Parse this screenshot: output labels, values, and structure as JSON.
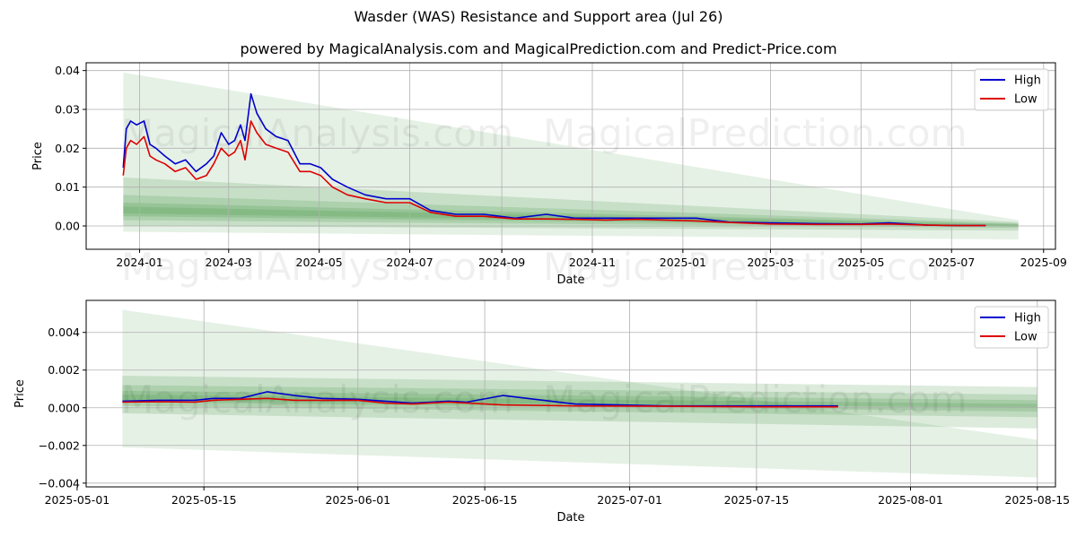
{
  "title": "Wasder (WAS) Resistance and Support area (Jul 26)",
  "subtitle": "powered by MagicalAnalysis.com and MagicalPrediction.com and Predict-Price.com",
  "watermark": [
    "MagicalAnalysis.com",
    "MagicalPrediction.com"
  ],
  "colors": {
    "high": "#0000cc",
    "low": "#dd0000",
    "band": "#2e8b2e",
    "grid": "#b0b0b0"
  },
  "chart_data": [
    {
      "type": "line",
      "xlabel": "Date",
      "ylabel": "Price",
      "xlim": [
        "2023-11-26",
        "2025-09-09"
      ],
      "ylim": [
        -0.006,
        0.042
      ],
      "xticks": [
        "2024-01",
        "2024-03",
        "2024-05",
        "2024-07",
        "2024-09",
        "2024-11",
        "2025-01",
        "2025-03",
        "2025-05",
        "2025-07",
        "2025-09"
      ],
      "yticks": [
        "0.00",
        "0.01",
        "0.02",
        "0.03",
        "0.04"
      ],
      "grid": true,
      "legend": "top-right",
      "series": [
        {
          "name": "High",
          "x": [
            "2023-12-21",
            "2023-12-23",
            "2023-12-26",
            "2023-12-30",
            "2024-01-04",
            "2024-01-08",
            "2024-01-12",
            "2024-01-18",
            "2024-01-25",
            "2024-02-01",
            "2024-02-08",
            "2024-02-15",
            "2024-02-20",
            "2024-02-25",
            "2024-03-01",
            "2024-03-05",
            "2024-03-09",
            "2024-03-12",
            "2024-03-16",
            "2024-03-20",
            "2024-03-26",
            "2024-04-02",
            "2024-04-10",
            "2024-04-18",
            "2024-04-25",
            "2024-05-02",
            "2024-05-10",
            "2024-05-20",
            "2024-06-01",
            "2024-06-15",
            "2024-07-01",
            "2024-07-15",
            "2024-08-01",
            "2024-08-20",
            "2024-09-10",
            "2024-10-01",
            "2024-10-20",
            "2024-11-10",
            "2024-12-01",
            "2024-12-20",
            "2025-01-10",
            "2025-02-01",
            "2025-03-01",
            "2025-04-01",
            "2025-05-01",
            "2025-05-20",
            "2025-06-15",
            "2025-07-05",
            "2025-07-24"
          ],
          "values": [
            0.015,
            0.025,
            0.027,
            0.026,
            0.027,
            0.021,
            0.02,
            0.018,
            0.016,
            0.017,
            0.014,
            0.016,
            0.018,
            0.024,
            0.021,
            0.022,
            0.026,
            0.022,
            0.034,
            0.029,
            0.025,
            0.023,
            0.022,
            0.016,
            0.016,
            0.015,
            0.012,
            0.01,
            0.008,
            0.007,
            0.007,
            0.004,
            0.003,
            0.003,
            0.002,
            0.003,
            0.002,
            0.002,
            0.002,
            0.002,
            0.002,
            0.001,
            0.0008,
            0.0006,
            0.0005,
            0.0008,
            0.0002,
            0.0001,
            0.0001
          ]
        },
        {
          "name": "Low",
          "x": [
            "2023-12-21",
            "2023-12-23",
            "2023-12-26",
            "2023-12-30",
            "2024-01-04",
            "2024-01-08",
            "2024-01-12",
            "2024-01-18",
            "2024-01-25",
            "2024-02-01",
            "2024-02-08",
            "2024-02-15",
            "2024-02-20",
            "2024-02-25",
            "2024-03-01",
            "2024-03-05",
            "2024-03-09",
            "2024-03-12",
            "2024-03-16",
            "2024-03-20",
            "2024-03-26",
            "2024-04-02",
            "2024-04-10",
            "2024-04-18",
            "2024-04-25",
            "2024-05-02",
            "2024-05-10",
            "2024-05-20",
            "2024-06-01",
            "2024-06-15",
            "2024-07-01",
            "2024-07-15",
            "2024-08-01",
            "2024-08-20",
            "2024-09-10",
            "2024-10-01",
            "2024-10-20",
            "2024-11-10",
            "2024-12-01",
            "2024-12-20",
            "2025-01-10",
            "2025-02-01",
            "2025-03-01",
            "2025-04-01",
            "2025-05-01",
            "2025-05-20",
            "2025-06-15",
            "2025-07-05",
            "2025-07-24"
          ],
          "values": [
            0.013,
            0.02,
            0.022,
            0.021,
            0.023,
            0.018,
            0.017,
            0.016,
            0.014,
            0.015,
            0.012,
            0.013,
            0.016,
            0.02,
            0.018,
            0.019,
            0.022,
            0.017,
            0.027,
            0.024,
            0.021,
            0.02,
            0.019,
            0.014,
            0.014,
            0.013,
            0.01,
            0.008,
            0.007,
            0.006,
            0.006,
            0.0035,
            0.0025,
            0.0025,
            0.0018,
            0.0018,
            0.0017,
            0.0015,
            0.0017,
            0.0015,
            0.0013,
            0.0009,
            0.0005,
            0.0004,
            0.0004,
            0.0005,
            0.0002,
            0.0001,
            0.0001
          ]
        }
      ],
      "bands": [
        {
          "x": [
            "2023-12-21",
            "2025-08-15"
          ],
          "upper": [
            0.0395,
            0.0015
          ],
          "lower": [
            -0.0015,
            -0.0035
          ]
        },
        {
          "x": [
            "2023-12-21",
            "2025-08-15"
          ],
          "upper": [
            0.0125,
            0.001
          ],
          "lower": [
            0.0,
            -0.0012
          ]
        },
        {
          "x": [
            "2023-12-21",
            "2025-08-15"
          ],
          "upper": [
            0.008,
            0.0007
          ],
          "lower": [
            0.0015,
            -0.0005
          ]
        },
        {
          "x": [
            "2023-12-21",
            "2025-08-15"
          ],
          "upper": [
            0.006,
            0.0005
          ],
          "lower": [
            0.0025,
            -0.0002
          ]
        },
        {
          "x": [
            "2023-12-21",
            "2025-08-15"
          ],
          "upper": [
            0.005,
            0.0003
          ],
          "lower": [
            0.0032,
            0.0
          ]
        }
      ]
    },
    {
      "type": "line",
      "xlabel": "Date",
      "ylabel": "Price",
      "xlim": [
        "2025-05-02",
        "2025-08-17"
      ],
      "ylim": [
        -0.0042,
        0.0057
      ],
      "xticks": [
        "2025-05-01",
        "2025-05-15",
        "2025-06-01",
        "2025-06-15",
        "2025-07-01",
        "2025-07-15",
        "2025-08-01",
        "2025-08-15"
      ],
      "yticks": [
        "−0.004",
        "−0.002",
        "0.000",
        "0.002",
        "0.004"
      ],
      "grid": true,
      "legend": "top-right",
      "series": [
        {
          "name": "High",
          "x": [
            "2025-05-06",
            "2025-05-10",
            "2025-05-14",
            "2025-05-16",
            "2025-05-19",
            "2025-05-22",
            "2025-05-25",
            "2025-05-28",
            "2025-06-01",
            "2025-06-04",
            "2025-06-07",
            "2025-06-09",
            "2025-06-11",
            "2025-06-13",
            "2025-06-17",
            "2025-06-25",
            "2025-07-05",
            "2025-07-15",
            "2025-07-24"
          ],
          "values": [
            0.00035,
            0.0004,
            0.0004,
            0.0005,
            0.0005,
            0.00085,
            0.00065,
            0.0005,
            0.00045,
            0.00035,
            0.00025,
            0.0003,
            0.00035,
            0.0003,
            0.00065,
            0.0002,
            0.0001,
            0.0001,
            0.0001
          ]
        },
        {
          "name": "Low",
          "x": [
            "2025-05-06",
            "2025-05-10",
            "2025-05-14",
            "2025-05-16",
            "2025-05-19",
            "2025-05-22",
            "2025-05-25",
            "2025-05-28",
            "2025-06-01",
            "2025-06-04",
            "2025-06-07",
            "2025-06-09",
            "2025-06-11",
            "2025-06-13",
            "2025-06-17",
            "2025-06-25",
            "2025-07-05",
            "2025-07-15",
            "2025-07-24"
          ],
          "values": [
            0.0003,
            0.00032,
            0.0003,
            0.0004,
            0.00045,
            0.0005,
            0.0004,
            0.0004,
            0.0004,
            0.00025,
            0.0002,
            0.00025,
            0.0003,
            0.00025,
            0.00015,
            0.0001,
            8e-05,
            5e-05,
            5e-05
          ]
        }
      ],
      "bands": [
        {
          "x": [
            "2025-05-06",
            "2025-08-15"
          ],
          "upper": [
            0.0052,
            -0.0017
          ],
          "lower": [
            -0.0021,
            -0.0037
          ]
        },
        {
          "x": [
            "2025-05-06",
            "2025-08-15"
          ],
          "upper": [
            0.0017,
            0.0011
          ],
          "lower": [
            -0.0003,
            -0.0011
          ]
        },
        {
          "x": [
            "2025-05-06",
            "2025-08-15"
          ],
          "upper": [
            0.0012,
            0.0007
          ],
          "lower": [
            0.0001,
            -0.0005
          ]
        },
        {
          "x": [
            "2025-05-06",
            "2025-08-15"
          ],
          "upper": [
            0.0009,
            0.0004
          ],
          "lower": [
            0.0003,
            -0.0002
          ]
        },
        {
          "x": [
            "2025-05-06",
            "2025-08-15"
          ],
          "upper": [
            0.0007,
            0.0002
          ],
          "lower": [
            0.0004,
            0.0
          ]
        }
      ]
    }
  ]
}
